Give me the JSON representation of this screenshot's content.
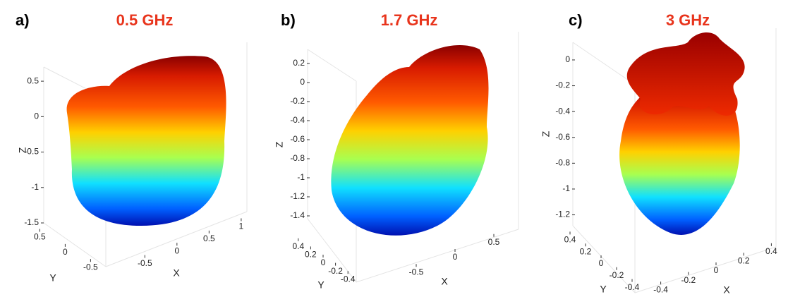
{
  "chart_data": [
    {
      "type": "surface",
      "panel_label": "a)",
      "title": "0.5 GHz",
      "xlabel": "X",
      "ylabel": "Y",
      "zlabel": "Z",
      "xlim": [
        -0.8,
        1.1
      ],
      "xticks": [
        -0.5,
        0,
        0.5,
        1
      ],
      "ylim": [
        -0.8,
        0.7
      ],
      "yticks": [
        -0.5,
        0,
        0.5
      ],
      "zlim": [
        -1.5,
        0.7
      ],
      "zticks": [
        -1.5,
        -1,
        -0.5,
        0,
        0.5
      ],
      "colormap": "jet"
    },
    {
      "type": "surface",
      "panel_label": "b)",
      "title": "1.7 GHz",
      "xlabel": "X",
      "ylabel": "Y",
      "zlabel": "Z",
      "xlim": [
        -0.8,
        0.8
      ],
      "xticks": [
        -0.5,
        0,
        0.5
      ],
      "ylim": [
        -0.5,
        0.5
      ],
      "yticks": [
        -0.4,
        -0.2,
        0,
        0.2,
        0.4
      ],
      "zlim": [
        -1.5,
        0.3
      ],
      "zticks": [
        -1.4,
        -1.2,
        -1,
        -0.8,
        -0.6,
        -0.4,
        -0.2,
        0,
        0.2
      ],
      "colormap": "jet"
    },
    {
      "type": "surface",
      "panel_label": "c)",
      "title": "3 GHz",
      "xlabel": "X",
      "ylabel": "Y",
      "zlabel": "Z",
      "xlim": [
        -0.5,
        0.5
      ],
      "xticks": [
        -0.4,
        -0.2,
        0,
        0.2,
        0.4
      ],
      "ylim": [
        -0.5,
        0.5
      ],
      "yticks": [
        -0.4,
        -0.2,
        0,
        0.2,
        0.4
      ],
      "zlim": [
        -1.35,
        0.15
      ],
      "zticks": [
        -1.2,
        -1,
        -0.8,
        -0.6,
        -0.4,
        -0.2,
        0
      ],
      "colormap": "jet"
    }
  ]
}
